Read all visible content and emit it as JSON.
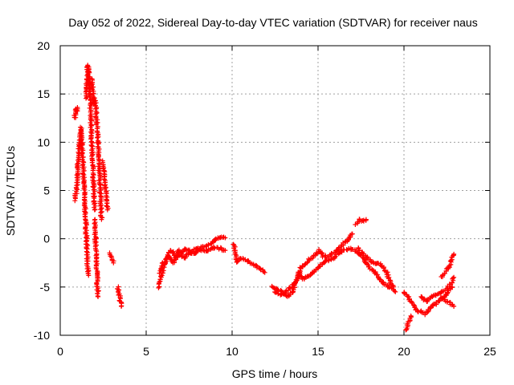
{
  "chart_data": {
    "type": "scatter",
    "title": "Day 052 of 2022, Sidereal Day-to-day VTEC variation (SDTVAR) for receiver naus",
    "xlabel": "GPS time / hours",
    "ylabel": "SDTVAR / TECUs",
    "xlim": [
      0,
      25
    ],
    "ylim": [
      -10,
      20
    ],
    "xticks": [
      0,
      5,
      10,
      15,
      20,
      25
    ],
    "yticks": [
      -10,
      -5,
      0,
      5,
      10,
      15,
      20
    ],
    "xtick_labels": [
      "0",
      "5",
      "10",
      "15",
      "20",
      "25"
    ],
    "ytick_labels": [
      "-10",
      "-5",
      "0",
      "5",
      "10",
      "15",
      "20"
    ],
    "grid": true,
    "marker": "+",
    "color": "#ff0000",
    "series": [
      {
        "name": "SDTVAR",
        "tracks": [
          [
            [
              0.85,
              12.5
            ],
            [
              0.9,
              13.5
            ],
            [
              0.95,
              13.2
            ],
            [
              1.0,
              13.6
            ]
          ],
          [
            [
              0.85,
              4
            ],
            [
              0.95,
              5
            ],
            [
              1.0,
              7
            ],
            [
              1.05,
              8.5
            ],
            [
              1.1,
              9.5
            ],
            [
              1.15,
              10
            ],
            [
              1.2,
              11.5
            ],
            [
              1.25,
              10
            ],
            [
              1.3,
              8.5
            ],
            [
              1.35,
              7
            ],
            [
              1.4,
              5
            ],
            [
              1.45,
              3
            ],
            [
              1.5,
              1
            ],
            [
              1.55,
              -1
            ],
            [
              1.6,
              -3
            ],
            [
              1.65,
              -3.8
            ]
          ],
          [
            [
              1.5,
              14.5
            ],
            [
              1.55,
              16
            ],
            [
              1.6,
              18
            ],
            [
              1.65,
              17
            ],
            [
              1.7,
              16
            ],
            [
              1.75,
              14
            ],
            [
              1.8,
              11
            ],
            [
              1.85,
              9
            ],
            [
              1.9,
              7
            ],
            [
              1.95,
              5
            ],
            [
              2.0,
              3
            ]
          ],
          [
            [
              1.85,
              16.5
            ],
            [
              1.9,
              15
            ],
            [
              1.95,
              14
            ],
            [
              2.0,
              14.5
            ],
            [
              2.05,
              14
            ],
            [
              2.1,
              13
            ],
            [
              2.15,
              11.5
            ],
            [
              2.2,
              10
            ],
            [
              2.25,
              8
            ],
            [
              2.3,
              6
            ],
            [
              2.35,
              4
            ],
            [
              2.4,
              2
            ]
          ],
          [
            [
              2.0,
              2
            ],
            [
              2.05,
              0
            ],
            [
              2.1,
              -2
            ],
            [
              2.15,
              -4
            ],
            [
              2.2,
              -6
            ]
          ],
          [
            [
              2.5,
              8
            ],
            [
              2.55,
              7
            ],
            [
              2.6,
              6
            ],
            [
              2.65,
              5
            ],
            [
              2.7,
              4
            ],
            [
              2.75,
              3
            ]
          ],
          [
            [
              2.9,
              -1.5
            ],
            [
              3.0,
              -2
            ],
            [
              3.1,
              -2.5
            ]
          ],
          [
            [
              3.35,
              -5
            ],
            [
              3.4,
              -5.5
            ],
            [
              3.45,
              -6
            ],
            [
              3.5,
              -6.5
            ],
            [
              3.55,
              -7
            ]
          ],
          [
            [
              5.7,
              -5
            ],
            [
              5.85,
              -4
            ],
            [
              6.0,
              -3
            ],
            [
              6.2,
              -2
            ],
            [
              6.4,
              -1.2
            ],
            [
              6.6,
              -1.5
            ],
            [
              6.8,
              -2
            ],
            [
              7.0,
              -1.5
            ],
            [
              7.3,
              -1
            ],
            [
              7.6,
              -1.3
            ],
            [
              8.0,
              -1
            ],
            [
              8.4,
              -0.8
            ],
            [
              8.8,
              -0.5
            ],
            [
              9.1,
              0
            ],
            [
              9.4,
              0.2
            ],
            [
              9.6,
              0.1
            ]
          ],
          [
            [
              5.8,
              -3.5
            ],
            [
              6.0,
              -2.5
            ],
            [
              6.3,
              -1.8
            ],
            [
              6.6,
              -2.5
            ],
            [
              6.9,
              -1.2
            ],
            [
              7.2,
              -2
            ],
            [
              7.5,
              -1.5
            ],
            [
              7.8,
              -1.5
            ],
            [
              8.1,
              -1.2
            ],
            [
              8.5,
              -1.3
            ],
            [
              8.9,
              -0.9
            ],
            [
              9.3,
              -1
            ],
            [
              9.6,
              -1.2
            ]
          ],
          [
            [
              10.1,
              -0.5
            ],
            [
              10.2,
              -1.5
            ],
            [
              10.3,
              -2.5
            ],
            [
              10.5,
              -2
            ],
            [
              10.8,
              -2.2
            ],
            [
              11.1,
              -2.5
            ],
            [
              11.4,
              -2.8
            ],
            [
              11.7,
              -3.2
            ],
            [
              11.9,
              -3.5
            ]
          ],
          [
            [
              12.3,
              -5
            ],
            [
              12.6,
              -5.2
            ],
            [
              12.9,
              -5.5
            ],
            [
              13.2,
              -6
            ],
            [
              13.5,
              -5.5
            ],
            [
              13.8,
              -4
            ],
            [
              14.0,
              -3
            ],
            [
              14.3,
              -2.5
            ],
            [
              14.6,
              -2
            ],
            [
              14.9,
              -1.5
            ],
            [
              15.1,
              -1.2
            ],
            [
              15.3,
              -1.8
            ],
            [
              15.6,
              -1.8
            ],
            [
              15.9,
              -1.5
            ],
            [
              16.2,
              -1
            ],
            [
              16.5,
              -0.5
            ],
            [
              16.8,
              0
            ],
            [
              17.0,
              0.5
            ]
          ],
          [
            [
              12.5,
              -5.5
            ],
            [
              12.8,
              -5.8
            ],
            [
              13.1,
              -5.5
            ],
            [
              13.4,
              -5
            ],
            [
              13.7,
              -4.5
            ],
            [
              13.9,
              -3.5
            ],
            [
              14.1,
              -4.2
            ],
            [
              14.4,
              -4
            ],
            [
              14.7,
              -3.5
            ],
            [
              15.0,
              -3
            ],
            [
              15.3,
              -2.5
            ],
            [
              15.6,
              -2.2
            ],
            [
              15.9,
              -2
            ],
            [
              16.2,
              -1.5
            ],
            [
              16.5,
              -1.2
            ],
            [
              16.8,
              -1
            ],
            [
              17.1,
              -1.2
            ],
            [
              17.4,
              -1.5
            ],
            [
              17.7,
              -2.2
            ],
            [
              18.0,
              -3
            ],
            [
              18.3,
              -3.5
            ],
            [
              18.6,
              -4.2
            ],
            [
              18.9,
              -4.8
            ],
            [
              19.2,
              -5
            ],
            [
              19.5,
              -5.5
            ]
          ],
          [
            [
              17.2,
              1.5
            ],
            [
              17.4,
              2
            ],
            [
              17.6,
              1.8
            ],
            [
              17.8,
              2
            ]
          ],
          [
            [
              17.3,
              -1
            ],
            [
              17.6,
              -1.5
            ],
            [
              17.9,
              -2
            ],
            [
              18.2,
              -2.5
            ],
            [
              18.5,
              -2.5
            ],
            [
              18.8,
              -3
            ],
            [
              19.0,
              -3.5
            ],
            [
              19.2,
              -4.5
            ],
            [
              19.4,
              -5
            ]
          ],
          [
            [
              20.0,
              -5.5
            ],
            [
              20.2,
              -6
            ],
            [
              20.4,
              -6.5
            ],
            [
              20.6,
              -7
            ],
            [
              20.8,
              -7.5
            ],
            [
              21.0,
              -7.5
            ],
            [
              21.2,
              -7.8
            ],
            [
              21.4,
              -7.5
            ],
            [
              21.6,
              -7
            ],
            [
              21.8,
              -6.8
            ],
            [
              22.0,
              -6.5
            ],
            [
              22.2,
              -6.2
            ],
            [
              22.4,
              -6
            ],
            [
              22.6,
              -5.5
            ],
            [
              22.8,
              -5
            ]
          ],
          [
            [
              20.1,
              -9.5
            ],
            [
              20.2,
              -9
            ],
            [
              20.3,
              -8.5
            ],
            [
              20.4,
              -8
            ]
          ],
          [
            [
              21.0,
              -6
            ],
            [
              21.3,
              -6.5
            ],
            [
              21.6,
              -6
            ],
            [
              21.9,
              -5.8
            ],
            [
              22.2,
              -5.5
            ],
            [
              22.5,
              -5.2
            ],
            [
              22.8,
              -4.5
            ],
            [
              22.9,
              -4
            ]
          ],
          [
            [
              22.2,
              -4
            ],
            [
              22.4,
              -3.5
            ],
            [
              22.6,
              -3
            ],
            [
              22.8,
              -2
            ],
            [
              22.9,
              -1.6
            ]
          ],
          [
            [
              22.2,
              -6
            ],
            [
              22.5,
              -6.5
            ],
            [
              22.8,
              -6.8
            ],
            [
              22.9,
              -7
            ]
          ]
        ]
      }
    ]
  }
}
